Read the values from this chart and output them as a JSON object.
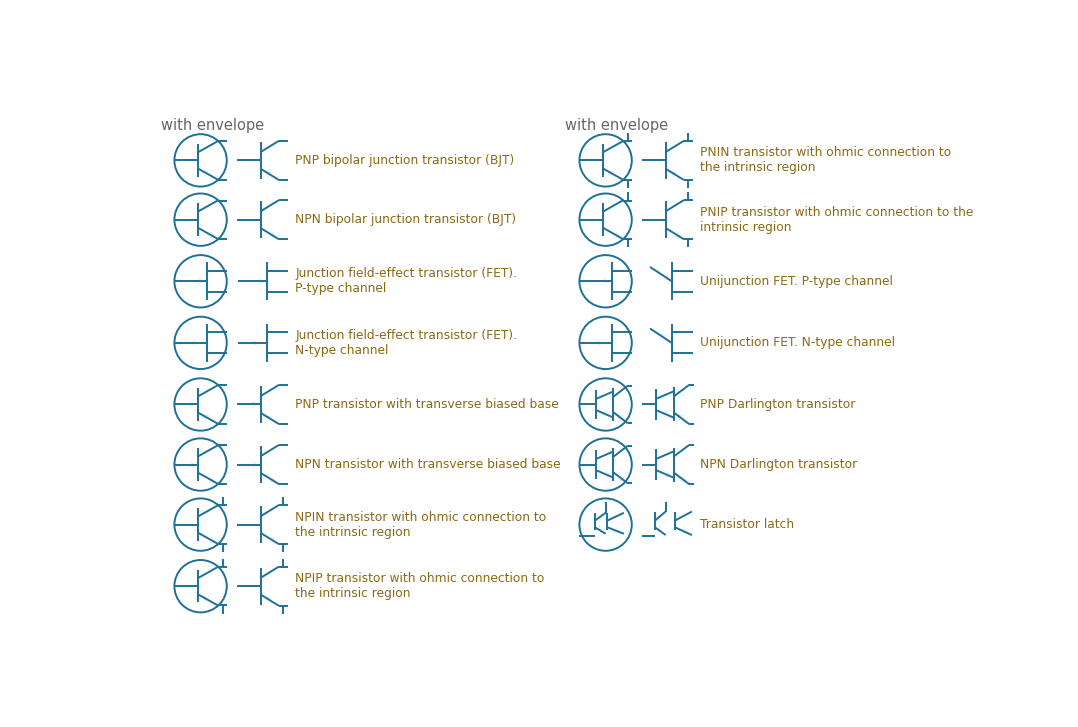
{
  "background_color": "#ffffff",
  "symbol_color": "#1e7096",
  "text_color": "#8b6914",
  "title_color": "#666666",
  "title_fontsize": 10.5,
  "label_fontsize": 8.8,
  "left_header": "with envelope",
  "right_header": "with envelope",
  "left_rows": [
    "PNP bipolar junction transistor (BJT)",
    "NPN bipolar junction transistor (BJT)",
    "Junction field-effect transistor (FET).\nP-type channel",
    "Junction field-effect transistor (FET).\nN-type channel",
    "PNP transistor with transverse biased base",
    "NPN transistor with transverse biased base",
    "NPIN transistor with ohmic connection to\nthe intrinsic region",
    "NPIP transistor with ohmic connection to\nthe intrinsic region"
  ],
  "right_rows": [
    "PNIN transistor with ohmic connection to\nthe intrinsic region",
    "PNIP transistor with ohmic connection to the\nintrinsic region",
    "Unijunction FET. P-type channel",
    "Unijunction FET. N-type channel",
    "PNP Darlington transistor",
    "NPN Darlington transistor",
    "Transistor latch"
  ]
}
